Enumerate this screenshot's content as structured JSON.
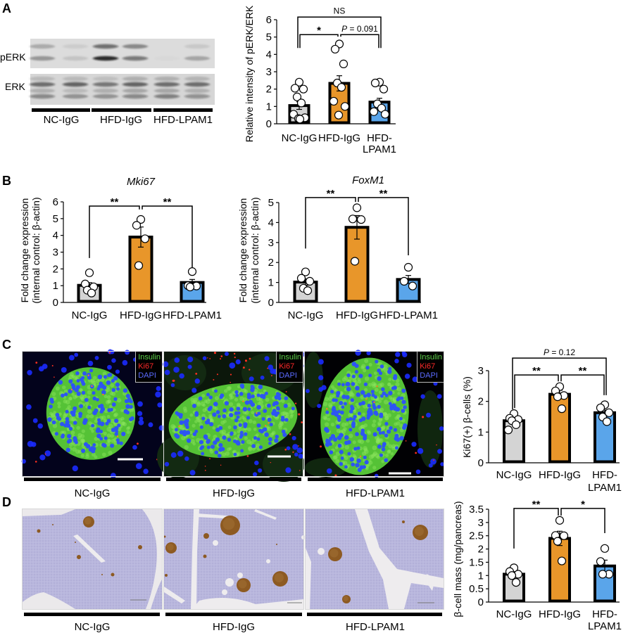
{
  "panels": {
    "A": {
      "letter": "A",
      "blot": {
        "row_labels": [
          "pERK",
          "ERK"
        ],
        "lanes_per_group": 2,
        "pERK_bands": [
          [
            0.25,
            0.08,
            0.6,
            0.42,
            0.0,
            0.1
          ],
          [
            0.35,
            0.12,
            0.95,
            0.55,
            0.02,
            0.28
          ]
        ],
        "ERK_bands": [
          [
            0.15,
            0.15,
            0.12,
            0.2,
            0.2,
            0.18
          ],
          [
            0.6,
            0.65,
            0.55,
            0.65,
            0.6,
            0.6
          ],
          [
            0.2,
            0.15,
            0.2,
            0.25,
            0.25,
            0.2
          ],
          [
            0.45,
            0.35,
            0.35,
            0.45,
            0.5,
            0.4
          ]
        ]
      },
      "groups": [
        "NC-IgG",
        "HFD-IgG",
        "HFD-LPAM1"
      ]
    },
    "B": {
      "letter": "B"
    },
    "C": {
      "letter": "C",
      "groups": [
        "NC-IgG",
        "HFD-IgG",
        "HFD-LPAM1"
      ],
      "legend": [
        {
          "text": "Insulin",
          "color": "#5ed24a"
        },
        {
          "text": "Ki67",
          "color": "#ff2a2a"
        },
        {
          "text": "DAPI",
          "color": "#5b6bff"
        }
      ]
    },
    "D": {
      "letter": "D",
      "groups": [
        "NC-IgG",
        "HFD-IgG",
        "HFD-LPAM1"
      ]
    }
  },
  "chart_data": [
    {
      "id": "A",
      "type": "bar",
      "title": "",
      "categories": [
        "NC-IgG",
        "HFD-IgG",
        "HFD-LPAM1"
      ],
      "category_lines": [
        [
          "NC-IgG"
        ],
        [
          "HFD-IgG"
        ],
        [
          "HFD-",
          "LPAM1"
        ]
      ],
      "xlabel": "",
      "ylabel": [
        "Relative intensity of pERK/ERK"
      ],
      "ylim": [
        0,
        6
      ],
      "yticks": [
        0,
        1,
        2,
        3,
        4,
        5,
        6
      ],
      "grid": false,
      "colors": [
        "#d4d4d4",
        "#e8962a",
        "#5aa5ea"
      ],
      "means": [
        1.05,
        2.33,
        1.25
      ],
      "sem": [
        0.22,
        0.44,
        0.22
      ],
      "points": [
        [
          2.4,
          2.05,
          2.0,
          1.55,
          1.2,
          0.55,
          0.35,
          0.3,
          0.27
        ],
        [
          4.6,
          4.3,
          3.45,
          2.35,
          2.1,
          1.3,
          1.0,
          0.5
        ],
        [
          2.4,
          2.35,
          2.0,
          1.15,
          0.9,
          0.7,
          0.55
        ]
      ],
      "annotations": [
        {
          "from": 0,
          "to": 2,
          "level": 6.15,
          "drop_left": 4.37,
          "drop_right": 4.37,
          "dx_left": -2,
          "dx_right": 2,
          "label": "NS"
        },
        {
          "from": 0,
          "to": 1,
          "level": 5.14,
          "drop_left": 4.37,
          "drop_right": 5.02,
          "dx_left": 1,
          "dx_right": -2,
          "label": "*"
        },
        {
          "from": 1,
          "to": 2,
          "level": 5.14,
          "drop_left": 5.02,
          "drop_right": 4.37,
          "dx_left": 2,
          "dx_right": -1,
          "label": "P = 0.091"
        }
      ]
    },
    {
      "id": "B-Mki67",
      "type": "bar",
      "title": "Mki67",
      "categories": [
        "NC-IgG",
        "HFD-IgG",
        "HFD-LPAM1"
      ],
      "category_lines": [
        [
          "NC-IgG"
        ],
        [
          "HFD-IgG"
        ],
        [
          "HFD-LPAM1"
        ]
      ],
      "xlabel": "",
      "ylabel": [
        "Fold change expression",
        "(internal control: β-actin)"
      ],
      "ylim": [
        0,
        6
      ],
      "yticks": [
        0,
        1,
        2,
        3,
        4,
        5,
        6
      ],
      "grid": false,
      "colors": [
        "#d4d4d4",
        "#e8962a",
        "#5aa5ea"
      ],
      "means": [
        1.02,
        3.9,
        1.19
      ],
      "sem": [
        0.16,
        0.6,
        0.18
      ],
      "points": [
        [
          1.77,
          1.1,
          0.93,
          0.73,
          0.56
        ],
        [
          4.95,
          4.6,
          3.8,
          2.2
        ],
        [
          1.84,
          1.0,
          0.98,
          0.92
        ]
      ],
      "annotations": [
        {
          "from": 0,
          "to": 1,
          "level": 5.75,
          "drop_left": 2.65,
          "drop_right": 5.55,
          "dx_left": 0,
          "dx_right": -2,
          "label": "**"
        },
        {
          "from": 1,
          "to": 2,
          "level": 5.75,
          "drop_left": 5.55,
          "drop_right": 2.1,
          "dx_left": 2,
          "dx_right": 0,
          "label": "**"
        }
      ]
    },
    {
      "id": "B-FoxM1",
      "type": "bar",
      "title": "FoxM1",
      "categories": [
        "NC-IgG",
        "HFD-IgG",
        "HFD-LPAM1"
      ],
      "category_lines": [
        [
          "NC-IgG"
        ],
        [
          "HFD-IgG"
        ],
        [
          "HFD-LPAM1"
        ]
      ],
      "xlabel": "",
      "ylabel": [
        "Fold change expression",
        "(internal control: β-actin)"
      ],
      "ylim": [
        0,
        5
      ],
      "yticks": [
        0,
        1,
        2,
        3,
        4,
        5
      ],
      "grid": false,
      "colors": [
        "#d4d4d4",
        "#e8962a",
        "#5aa5ea"
      ],
      "means": [
        1.02,
        3.76,
        1.15
      ],
      "sem": [
        0.16,
        0.59,
        0.2
      ],
      "points": [
        [
          1.53,
          1.21,
          1.06,
          0.71,
          0.59
        ],
        [
          4.74,
          4.18,
          4.15,
          2.06
        ],
        [
          1.76,
          1.06,
          0.82
        ]
      ],
      "annotations": [
        {
          "from": 0,
          "to": 1,
          "level": 5.25,
          "drop_left": 2.7,
          "drop_right": 5.03,
          "dx_left": 0,
          "dx_right": -2,
          "label": "**"
        },
        {
          "from": 1,
          "to": 2,
          "level": 5.25,
          "drop_left": 5.03,
          "drop_right": 2.36,
          "dx_left": 2,
          "dx_right": 0,
          "label": "**"
        }
      ]
    },
    {
      "id": "C",
      "type": "bar",
      "title": "",
      "categories": [
        "NC-IgG",
        "HFD-IgG",
        "HFD-LPAM1"
      ],
      "category_lines": [
        [
          "NC-IgG"
        ],
        [
          "HFD-IgG"
        ],
        [
          "HFD-",
          "LPAM1"
        ]
      ],
      "xlabel": "",
      "ylabel": [
        "Ki67(+) β-cells (%)"
      ],
      "ylim": [
        0,
        3
      ],
      "yticks": [
        0,
        1,
        2,
        3
      ],
      "grid": false,
      "colors": [
        "#d4d4d4",
        "#e8962a",
        "#5aa5ea"
      ],
      "means": [
        1.37,
        2.23,
        1.63
      ],
      "sem": [
        0.1,
        0.13,
        0.09
      ],
      "points": [
        [
          1.6,
          1.45,
          1.41,
          1.37,
          1.24,
          1.07
        ],
        [
          2.48,
          2.34,
          2.19,
          2.15,
          1.76
        ],
        [
          1.89,
          1.79,
          1.63,
          1.49,
          1.34
        ]
      ],
      "annotations": [
        {
          "from": 0,
          "to": 2,
          "level": 3.41,
          "drop_left": 1.74,
          "drop_right": 2.2,
          "dx_left": -2,
          "dx_right": 2,
          "label": "P = 0.12"
        },
        {
          "from": 0,
          "to": 1,
          "level": 2.86,
          "drop_left": 1.78,
          "drop_right": 2.65,
          "dx_left": 1,
          "dx_right": -2,
          "label": "**"
        },
        {
          "from": 1,
          "to": 2,
          "level": 2.86,
          "drop_left": 2.65,
          "drop_right": 2.2,
          "dx_left": 2,
          "dx_right": -1,
          "label": "**"
        }
      ]
    },
    {
      "id": "D",
      "type": "bar",
      "title": "",
      "categories": [
        "NC-IgG",
        "HFD-IgG",
        "HFD-LPAM1"
      ],
      "category_lines": [
        [
          "NC-IgG"
        ],
        [
          "HFD-IgG"
        ],
        [
          "HFD-",
          "LPAM1"
        ]
      ],
      "xlabel": "",
      "ylabel": [
        "β-cell mass (mg/pancreas)"
      ],
      "ylim": [
        0,
        3.5
      ],
      "yticks": [
        0,
        0.5,
        1,
        1.5,
        2,
        2.5,
        3,
        3.5
      ],
      "grid": false,
      "colors": [
        "#d4d4d4",
        "#e8962a",
        "#5aa5ea"
      ],
      "means": [
        1.05,
        2.4,
        1.36
      ],
      "sem": [
        0.1,
        0.27,
        0.22
      ],
      "points": [
        [
          1.29,
          1.15,
          1.05,
          1.0,
          0.74
        ],
        [
          3.08,
          2.51,
          2.5,
          2.29,
          1.55
        ],
        [
          2.02,
          1.53,
          1.05,
          1.05
        ]
      ],
      "annotations": [
        {
          "from": 0,
          "to": 1,
          "level": 3.53,
          "drop_left": 2.02,
          "drop_right": 3.26,
          "dx_left": 0,
          "dx_right": -2,
          "label": "**"
        },
        {
          "from": 1,
          "to": 2,
          "level": 3.53,
          "drop_left": 3.26,
          "drop_right": 2.6,
          "dx_left": 2,
          "dx_right": 0,
          "label": "*"
        }
      ]
    }
  ]
}
